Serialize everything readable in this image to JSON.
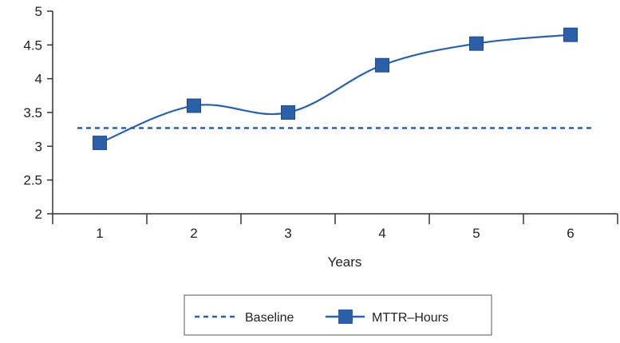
{
  "chart_data": {
    "type": "line",
    "xlabel": "Years",
    "ylabel": "",
    "title": "",
    "categories": [
      "1",
      "2",
      "3",
      "4",
      "5",
      "6"
    ],
    "ylim": [
      2,
      5
    ],
    "yticks": [
      "2",
      "2.5",
      "3",
      "3.5",
      "4",
      "4.5",
      "5"
    ],
    "grid": false,
    "legend_position": "bottom",
    "series": [
      {
        "name": "MTTR–Hours",
        "values": [
          3.05,
          3.6,
          3.5,
          4.2,
          4.52,
          4.65
        ],
        "color": "#2b5fa8",
        "marker": "square",
        "line_style": "solid"
      },
      {
        "name": "Baseline",
        "values": [
          3.27,
          3.27,
          3.27,
          3.27,
          3.27,
          3.27
        ],
        "color": "#2b5fa8",
        "marker": "none",
        "line_style": "dashed"
      }
    ],
    "axis_color": "#333333"
  }
}
